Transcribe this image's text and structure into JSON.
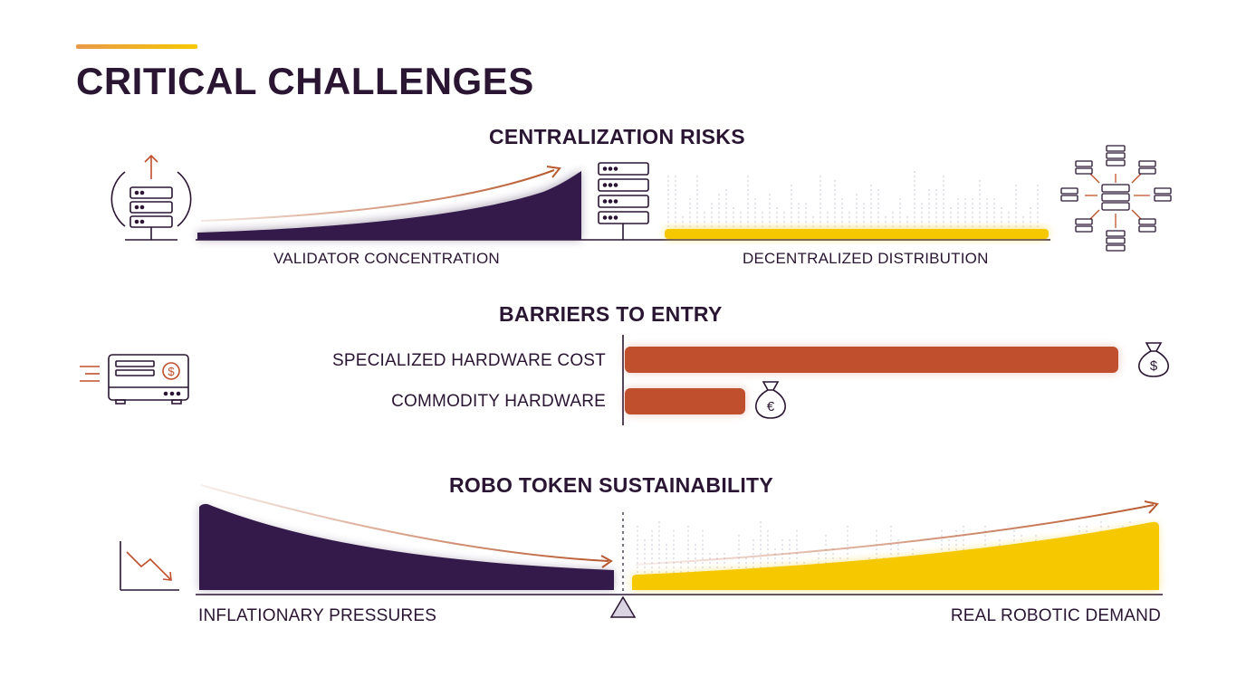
{
  "title": "CRITICAL CHALLENGES",
  "sections": {
    "centralization": {
      "title": "CENTRALIZATION RISKS",
      "left_label": "VALIDATOR CONCENTRATION",
      "right_label": "DECENTRALIZED DISTRIBUTION",
      "left_icon": "validator-server-upload-icon",
      "mid_icon": "server-rack-icon",
      "right_icon": "distributed-network-icon"
    },
    "barriers": {
      "title": "BARRIERS TO ENTRY",
      "bars": [
        {
          "label": "SPECIALIZED HARDWARE COST",
          "value": 0.98,
          "icon": "dollar-money-bag-icon"
        },
        {
          "label": "COMMODITY HARDWARE",
          "value": 0.24,
          "icon": "euro-money-bag-icon"
        }
      ],
      "left_icon": "hardware-device-dollar-icon"
    },
    "robo": {
      "title": "ROBO TOKEN SUSTAINABILITY",
      "left_label": "INFLATIONARY PRESSURES",
      "right_label": "REAL ROBOTIC DEMAND",
      "left_icon": "declining-chart-icon",
      "pivot_icon": "balance-pivot-icon"
    }
  },
  "colors": {
    "dark_purple": "#341a4a",
    "yellow": "#f5c800",
    "orange": "#c0502d",
    "arrow": "#b8582e",
    "text": "#2a1533"
  }
}
